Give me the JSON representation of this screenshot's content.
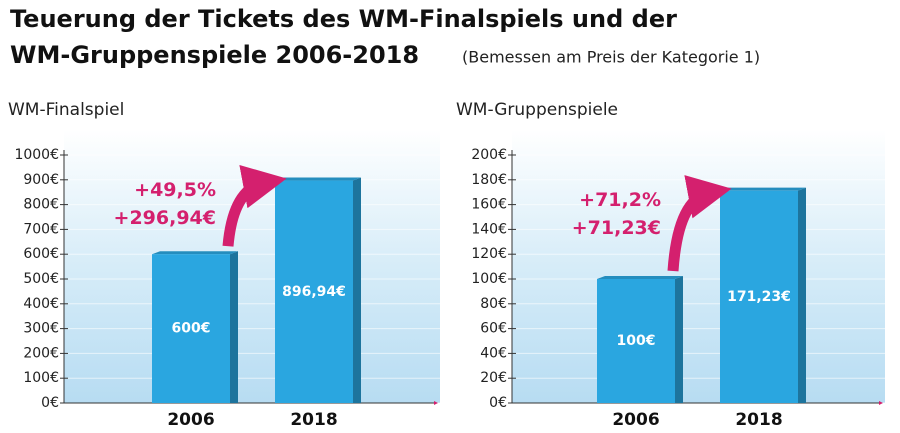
{
  "title": [
    "Teuerung der Tickets des WM-Finalspiels und der",
    "WM-Gruppenspiele 2006-2018"
  ],
  "subtitle": "(Bemessen am Preis der Kategorie 1)",
  "chart_data": [
    {
      "type": "bar",
      "title": "WM-Finalspiel",
      "categories": [
        "2006",
        "2018"
      ],
      "values": [
        600,
        896.94
      ],
      "value_labels": [
        "600€",
        "896,94€"
      ],
      "color": "#2aa6e0",
      "annotations": [
        "+49,5%",
        "+296,94€"
      ],
      "ylim": [
        0,
        1000
      ],
      "yticks": [
        {
          "value": 0,
          "label": "0€"
        },
        {
          "value": 100,
          "label": "100€"
        },
        {
          "value": 200,
          "label": "200€"
        },
        {
          "value": 300,
          "label": "300€"
        },
        {
          "value": 400,
          "label": "400€"
        },
        {
          "value": 500,
          "label": "500€"
        },
        {
          "value": 600,
          "label": "600€"
        },
        {
          "value": 700,
          "label": "700€"
        },
        {
          "value": 800,
          "label": "800€"
        },
        {
          "value": 900,
          "label": "900€"
        },
        {
          "value": 1000,
          "label": "1000€"
        }
      ]
    },
    {
      "type": "bar",
      "title": "WM-Gruppenspiele",
      "categories": [
        "2006",
        "2018"
      ],
      "values": [
        100,
        171.23
      ],
      "value_labels": [
        "100€",
        "171,23€"
      ],
      "color": "#2aa6e0",
      "annotations": [
        "+71,2%",
        "+71,23€"
      ],
      "ylim": [
        0,
        200
      ],
      "yticks": [
        {
          "value": 0,
          "label": "0€"
        },
        {
          "value": 20,
          "label": "20€"
        },
        {
          "value": 40,
          "label": "40€"
        },
        {
          "value": 60,
          "label": "60€"
        },
        {
          "value": 80,
          "label": "80€"
        },
        {
          "value": 100,
          "label": "100€"
        },
        {
          "value": 120,
          "label": "120€"
        },
        {
          "value": 140,
          "label": "140€"
        },
        {
          "value": 160,
          "label": "160€"
        },
        {
          "value": 180,
          "label": "180€"
        },
        {
          "value": 200,
          "label": "200€"
        }
      ]
    }
  ]
}
